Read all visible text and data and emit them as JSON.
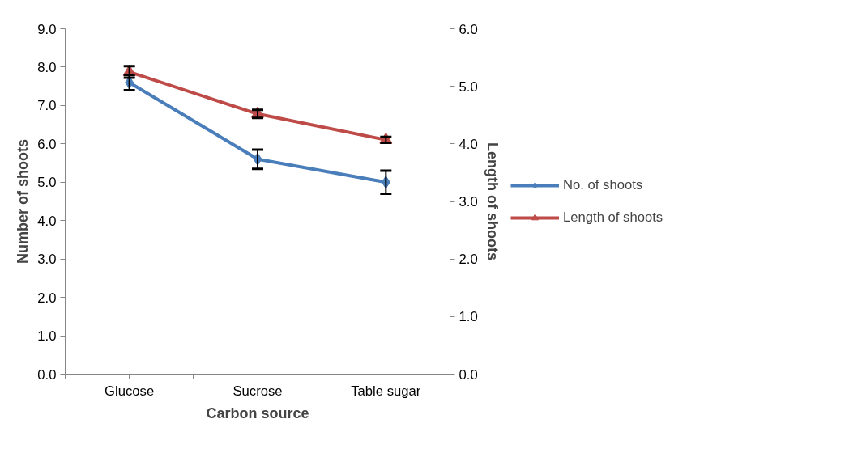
{
  "chart_data": {
    "type": "line",
    "xlabel": "Carbon source",
    "ylabel": "Number of shoots",
    "y2label": "Length of shoots",
    "categories": [
      "Glucose",
      "Sucrose",
      "Table sugar"
    ],
    "series": [
      {
        "name": "No. of shoots",
        "color": "#4a7ebb",
        "values": [
          7.6,
          5.6,
          5.0
        ],
        "errors": [
          0.2,
          0.25,
          0.3
        ],
        "marker": "diamond"
      },
      {
        "name": "Length of shoots",
        "color": "#be4b48",
        "values": [
          5.25,
          4.52,
          4.07
        ],
        "errors": [
          0.1,
          0.07,
          0.05
        ],
        "marker": "triangle",
        "axis": "y2"
      }
    ],
    "ylim": [
      0,
      9
    ],
    "yticks": [
      {
        "value": 0,
        "label": "0.0"
      },
      {
        "value": 1,
        "label": "1.0"
      },
      {
        "value": 2,
        "label": "2.0"
      },
      {
        "value": 3,
        "label": "3.0"
      },
      {
        "value": 4,
        "label": "4.0"
      },
      {
        "value": 5,
        "label": "5.0"
      },
      {
        "value": 6,
        "label": "6.0"
      },
      {
        "value": 7,
        "label": "7.0"
      },
      {
        "value": 8,
        "label": "8.0"
      },
      {
        "value": 9,
        "label": "9.0"
      }
    ],
    "y2lim": [
      0,
      6
    ],
    "y2ticks": [
      {
        "value": 0,
        "label": "0.0"
      },
      {
        "value": 1,
        "label": "1.0"
      },
      {
        "value": 2,
        "label": "2.0"
      },
      {
        "value": 3,
        "label": "3.0"
      },
      {
        "value": 4,
        "label": "4.0"
      },
      {
        "value": 5,
        "label": "5.0"
      },
      {
        "value": 6,
        "label": "6.0"
      }
    ],
    "grid": false,
    "legend": "right",
    "line_style": "solid"
  }
}
